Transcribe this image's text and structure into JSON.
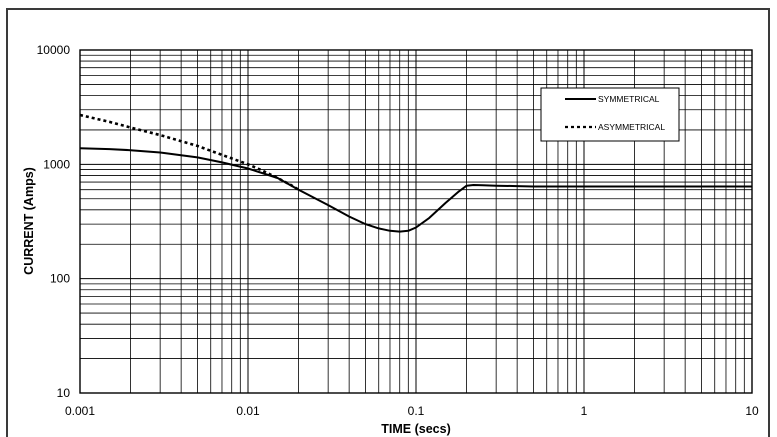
{
  "chart_data": {
    "type": "line",
    "xlabel": "TIME (secs)",
    "ylabel": "CURRENT (Amps)",
    "xscale": "log",
    "yscale": "log",
    "xlim": [
      0.001,
      10
    ],
    "ylim": [
      10,
      10000
    ],
    "x_tick_labels": [
      "0.001",
      "0.01",
      "0.1",
      "1",
      "10"
    ],
    "y_tick_labels": [
      "10",
      "100",
      "1000",
      "10000"
    ],
    "grid": true,
    "legend_position": "top-right",
    "series": [
      {
        "name": "SYMMETRICAL",
        "style": "solid",
        "color": "#000000",
        "x": [
          0.001,
          0.0015,
          0.002,
          0.003,
          0.005,
          0.007,
          0.01,
          0.015,
          0.02,
          0.03,
          0.04,
          0.05,
          0.06,
          0.07,
          0.08,
          0.09,
          0.1,
          0.12,
          0.15,
          0.18,
          0.2,
          0.22,
          0.25,
          0.3,
          0.4,
          0.5,
          1,
          2,
          5,
          10
        ],
        "y": [
          1380,
          1360,
          1330,
          1270,
          1150,
          1040,
          920,
          760,
          600,
          440,
          350,
          300,
          275,
          262,
          258,
          262,
          280,
          340,
          460,
          580,
          650,
          660,
          655,
          650,
          645,
          640,
          640,
          640,
          640,
          640
        ]
      },
      {
        "name": "ASYMMETRICAL",
        "style": "dotted",
        "color": "#000000",
        "x": [
          0.001,
          0.0015,
          0.002,
          0.003,
          0.005,
          0.007,
          0.01,
          0.012,
          0.015,
          0.018,
          0.02
        ],
        "y": [
          2700,
          2350,
          2100,
          1800,
          1450,
          1210,
          1000,
          890,
          760,
          660,
          600
        ]
      }
    ]
  }
}
